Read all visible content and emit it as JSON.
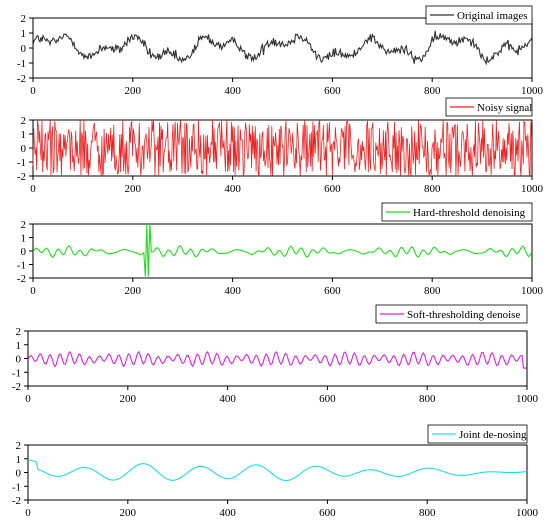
{
  "chart_data": [
    {
      "type": "line",
      "series": [
        {
          "name": "Original images",
          "color": "#333333",
          "style": "noisy-medium"
        }
      ],
      "x": [
        0,
        1000
      ],
      "xticks": [
        "0",
        "200",
        "400",
        "600",
        "800",
        "1000"
      ],
      "yticks": [
        "2",
        "1",
        "0",
        "-1",
        "-2"
      ],
      "ylim": [
        -2,
        2
      ],
      "xlim": [
        0,
        1000
      ],
      "legend_position": "top-right"
    },
    {
      "type": "line",
      "series": [
        {
          "name": "Noisy signal",
          "color": "#ee2222",
          "style": "noisy-heavy"
        }
      ],
      "x": [
        0,
        1000
      ],
      "xticks": [
        "0",
        "200",
        "400",
        "600",
        "800",
        "1000"
      ],
      "yticks": [
        "2",
        "1",
        "0",
        "-1",
        "-2"
      ],
      "ylim": [
        -2,
        2
      ],
      "xlim": [
        0,
        1000
      ],
      "legend_position": "top-right"
    },
    {
      "type": "line",
      "series": [
        {
          "name": "Hard-threshold denoising",
          "color": "#22dd22",
          "style": "smooth-spike"
        }
      ],
      "x": [
        0,
        1000
      ],
      "xticks": [
        "0",
        "200",
        "400",
        "600",
        "800",
        "1000"
      ],
      "yticks": [
        "2",
        "1",
        "0",
        "-1",
        "-2"
      ],
      "ylim": [
        -2,
        2
      ],
      "xlim": [
        0,
        1000
      ],
      "legend_position": "top-right"
    },
    {
      "type": "line",
      "series": [
        {
          "name": "Soft-thresholding denoise",
          "color": "#dd22dd",
          "style": "smooth-wiggle"
        }
      ],
      "x": [
        0,
        1000
      ],
      "xticks": [
        "0",
        "200",
        "400",
        "600",
        "800",
        "1000"
      ],
      "yticks": [
        "2",
        "1",
        "0",
        "-1",
        "-2"
      ],
      "ylim": [
        -2,
        2
      ],
      "xlim": [
        0,
        1000
      ],
      "legend_position": "top-right"
    },
    {
      "type": "line",
      "series": [
        {
          "name": "Joint de-nosing",
          "color": "#22dddd",
          "style": "smooth"
        }
      ],
      "x": [
        0,
        1000
      ],
      "xticks": [
        "0",
        "200",
        "400",
        "600",
        "800",
        "1000"
      ],
      "yticks": [
        "2",
        "1",
        "0",
        "-1",
        "-2"
      ],
      "ylim": [
        -2,
        2
      ],
      "xlim": [
        0,
        1000
      ],
      "legend_position": "top-right"
    }
  ]
}
